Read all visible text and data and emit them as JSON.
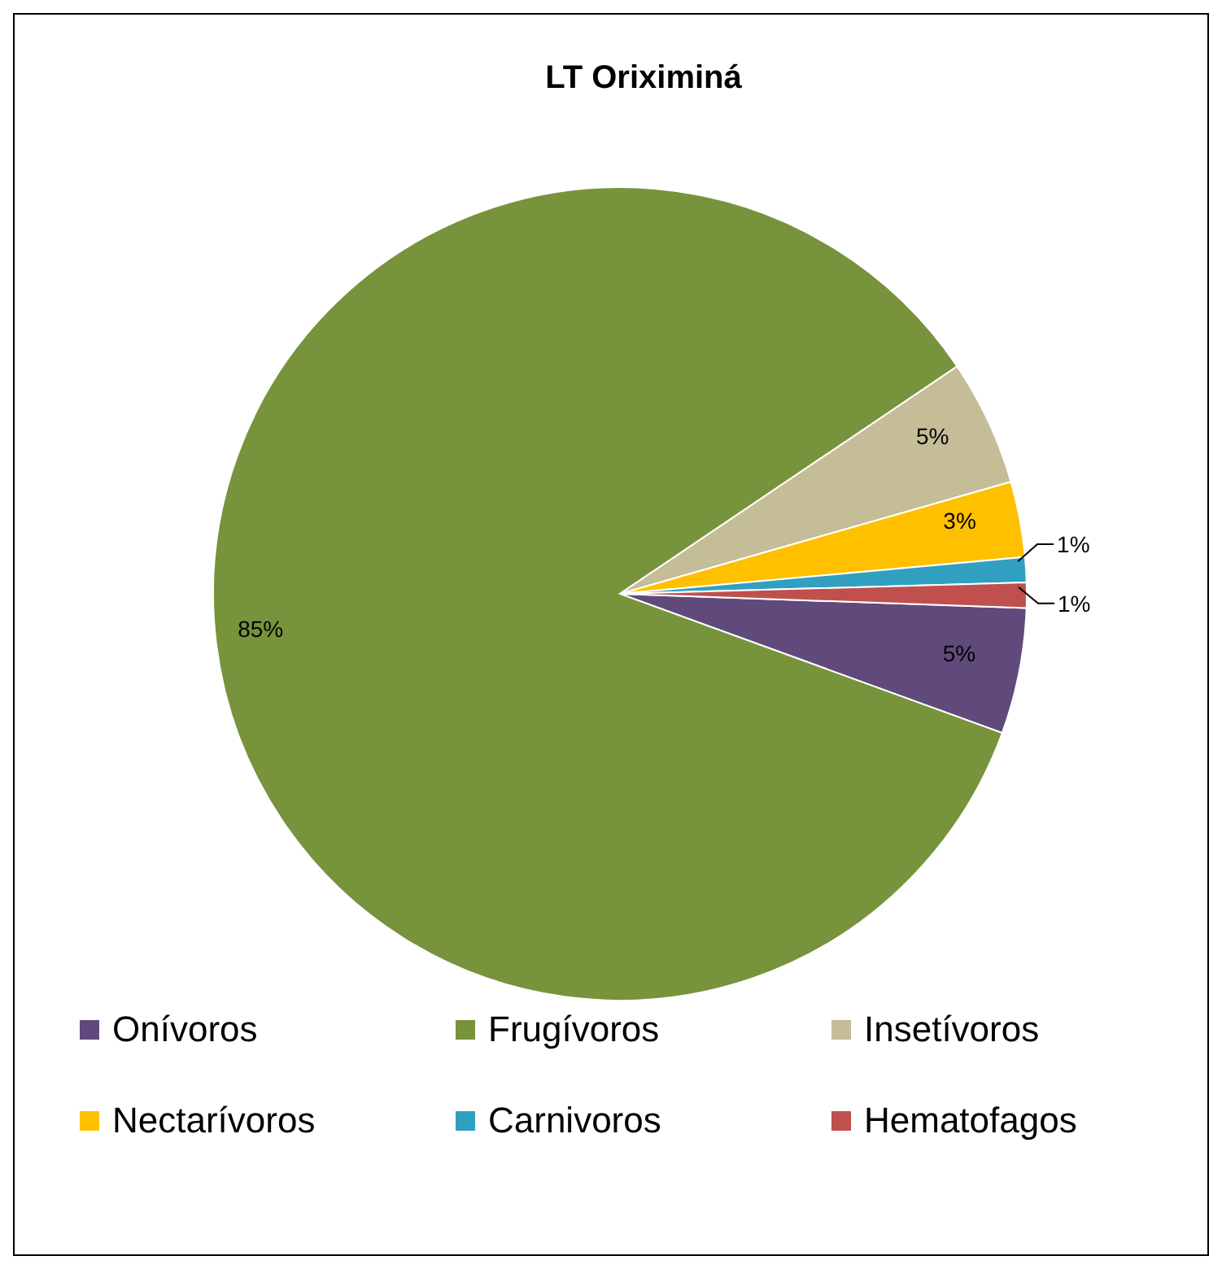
{
  "chart_data": {
    "type": "pie",
    "title": "LT Oriximiná",
    "categories": [
      "Onívoros",
      "Frugívoros",
      "Insetívoros",
      "Nectarívoros",
      "Carnivoros",
      "Hematofagos"
    ],
    "values": [
      5,
      85,
      5,
      3,
      1,
      1
    ],
    "colors": [
      "#604a7b",
      "#77933c",
      "#c4bd97",
      "#ffc000",
      "#31a0c0",
      "#c0504d"
    ],
    "value_labels": [
      "5%",
      "85%",
      "5%",
      "3%",
      "1%",
      "1%"
    ],
    "legend": "bottom"
  }
}
